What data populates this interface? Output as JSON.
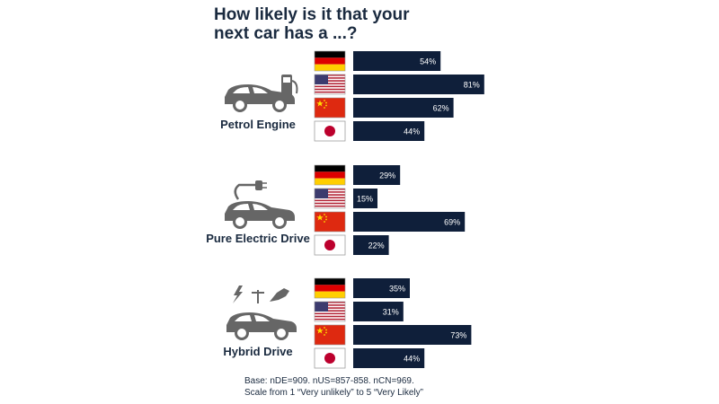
{
  "title_lines": [
    "How likely is it that your",
    "next car has a ...?"
  ],
  "footnote_lines": [
    "Base: nDE=909. nUS=857-858. nCN=969.",
    "Scale from 1 “Very unlikely” to 5 “Very Likely”"
  ],
  "colors": {
    "bar": "#0f1f3a",
    "text": "#1a2a3f",
    "icon": "#666666"
  },
  "chart_data": {
    "type": "bar",
    "orientation": "horizontal",
    "unit": "%",
    "countries": [
      "Germany",
      "USA",
      "China",
      "Japan"
    ],
    "flag_icons": [
      "germany-flag-icon",
      "usa-flag-icon",
      "china-flag-icon",
      "japan-flag-icon"
    ],
    "groups": [
      {
        "label": "Petrol Engine",
        "icon": "petrol-car-icon",
        "values": [
          54,
          81,
          62,
          44
        ]
      },
      {
        "label": "Pure Electric Drive",
        "icon": "electric-car-icon",
        "values": [
          29,
          15,
          69,
          22
        ]
      },
      {
        "label": "Hybrid Drive",
        "icon": "hybrid-car-icon",
        "values": [
          35,
          31,
          73,
          44
        ]
      }
    ],
    "xlim": [
      0,
      100
    ],
    "grid": false,
    "legend": "none"
  }
}
